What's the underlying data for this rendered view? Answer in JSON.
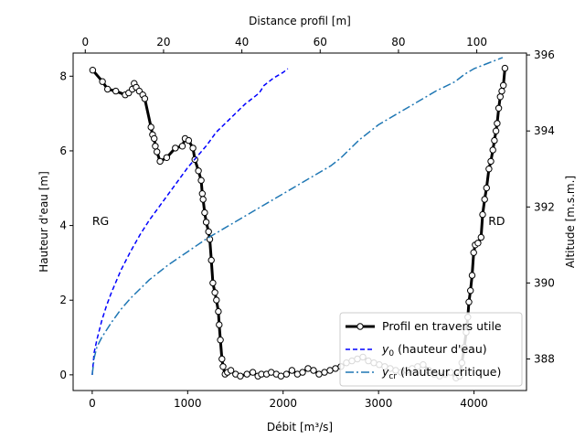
{
  "chart_data": {
    "type": "line",
    "xlabel": "Débit [m³/s]",
    "ylabel": "Hauteur d'eau [m]",
    "top_xlabel": "Distance profil [m]",
    "right_ylabel": "Altitude [m.s.m.]",
    "xlim": [
      -200,
      4550
    ],
    "ylim": [
      -0.42,
      8.62
    ],
    "top_xlim": [
      -3.1,
      112.7
    ],
    "right_ylim": [
      387.17,
      396.05
    ],
    "xticks": [
      0,
      1000,
      2000,
      3000,
      4000
    ],
    "yticks": [
      0,
      2,
      4,
      6,
      8
    ],
    "top_xticks": [
      0,
      20,
      40,
      60,
      80,
      100
    ],
    "right_yticks": [
      388,
      390,
      392,
      394,
      396
    ],
    "annotations": [
      {
        "text": "RG",
        "x": 0,
        "y": 4.1
      },
      {
        "text": "RD",
        "x": 4150,
        "y": 4.1
      }
    ],
    "legend_position": "lower right",
    "series": [
      {
        "name": "Profil en travers utile",
        "axes": "top-right",
        "style": "line-markers",
        "color": "#000000",
        "x": [
          1.9,
          4.4,
          5.7,
          7.8,
          10.2,
          11.1,
          12.0,
          12.5,
          13.0,
          13.8,
          14.7,
          15.2,
          16.8,
          17.2,
          17.6,
          17.9,
          18.3,
          19.1,
          20.8,
          23.0,
          24.8,
          25.5,
          26.4,
          27.5,
          28.0,
          28.9,
          29.6,
          29.9,
          30.1,
          30.5,
          30.9,
          31.5,
          31.8,
          32.2,
          32.6,
          33.1,
          33.5,
          34.0,
          34.2,
          34.5,
          34.9,
          35.2,
          35.7,
          36.3,
          37.2,
          38.4,
          39.6,
          41.3,
          42.8,
          44.1,
          45.0,
          46.3,
          47.5,
          48.8,
          50.0,
          51.4,
          52.8,
          54.2,
          55.5,
          56.9,
          58.3,
          59.7,
          61.1,
          62.5,
          63.9,
          65.3,
          66.7,
          68.1,
          69.5,
          70.9,
          72.3,
          73.7,
          75.1,
          76.5,
          77.9,
          79.3,
          80.7,
          82.1,
          83.5,
          84.9,
          86.3,
          87.7,
          89.1,
          90.5,
          91.9,
          93.3,
          94.7,
          95.6,
          96.2,
          96.8,
          97.3,
          97.7,
          98.0,
          98.4,
          98.8,
          99.2,
          99.6,
          100.3,
          101.1,
          101.5,
          102.0,
          102.5,
          103.1,
          103.6,
          104.1,
          104.5,
          104.9,
          105.2,
          105.6,
          106.0,
          106.4,
          106.8,
          107.2
        ],
        "y": [
          395.6,
          395.3,
          395.1,
          395.05,
          394.95,
          395.0,
          395.1,
          395.25,
          395.15,
          395.05,
          394.95,
          394.85,
          394.1,
          393.9,
          393.8,
          393.6,
          393.45,
          393.2,
          393.3,
          393.55,
          393.6,
          393.8,
          393.75,
          393.55,
          393.25,
          392.95,
          392.7,
          392.35,
          392.2,
          391.85,
          391.6,
          391.35,
          391.15,
          390.6,
          390.0,
          389.75,
          389.55,
          389.25,
          388.9,
          388.5,
          388.0,
          387.8,
          387.6,
          387.65,
          387.7,
          387.6,
          387.55,
          387.6,
          387.65,
          387.55,
          387.6,
          387.6,
          387.65,
          387.6,
          387.55,
          387.6,
          387.7,
          387.6,
          387.65,
          387.75,
          387.7,
          387.6,
          387.65,
          387.7,
          387.75,
          387.8,
          387.9,
          387.95,
          388.0,
          388.05,
          387.95,
          387.9,
          387.85,
          387.8,
          387.75,
          387.7,
          387.65,
          387.7,
          387.75,
          387.8,
          387.85,
          387.7,
          387.6,
          387.55,
          387.6,
          387.65,
          387.5,
          387.55,
          387.9,
          388.3,
          388.7,
          389.1,
          389.5,
          389.8,
          390.2,
          390.8,
          391.0,
          391.05,
          391.2,
          391.8,
          392.2,
          392.5,
          393.0,
          393.2,
          393.5,
          393.75,
          394.0,
          394.2,
          394.6,
          394.9,
          395.05,
          395.2,
          395.65
        ]
      },
      {
        "name": "y0 (hauteur d'eau)",
        "axes": "bottom-left",
        "style": "dashed",
        "color": "#0000ff",
        "x": [
          0,
          20,
          50,
          100,
          150,
          200,
          300,
          400,
          500,
          600,
          700,
          800,
          900,
          1000,
          1100,
          1200,
          1300,
          1400,
          1500,
          1600,
          1700,
          1750,
          1800,
          1900,
          2000,
          2050
        ],
        "y": [
          0.0,
          0.6,
          0.95,
          1.45,
          1.85,
          2.2,
          2.8,
          3.3,
          3.75,
          4.15,
          4.5,
          4.85,
          5.2,
          5.55,
          5.85,
          6.15,
          6.5,
          6.75,
          7.0,
          7.25,
          7.45,
          7.55,
          7.75,
          7.95,
          8.1,
          8.2
        ]
      },
      {
        "name": "ycr (hauteur critique)",
        "axes": "bottom-left",
        "style": "dashdot",
        "color": "#1f77b4",
        "x": [
          0,
          20,
          50,
          100,
          200,
          300,
          400,
          500,
          600,
          800,
          1000,
          1200,
          1500,
          1800,
          2000,
          2200,
          2400,
          2500,
          2600,
          2800,
          3000,
          3200,
          3400,
          3600,
          3800,
          3900,
          4000,
          4150,
          4300
        ],
        "y": [
          0.0,
          0.45,
          0.75,
          1.0,
          1.4,
          1.75,
          2.05,
          2.3,
          2.55,
          2.95,
          3.3,
          3.65,
          4.1,
          4.55,
          4.85,
          5.15,
          5.45,
          5.6,
          5.8,
          6.3,
          6.7,
          7.0,
          7.3,
          7.6,
          7.85,
          8.05,
          8.2,
          8.35,
          8.5
        ]
      }
    ]
  }
}
